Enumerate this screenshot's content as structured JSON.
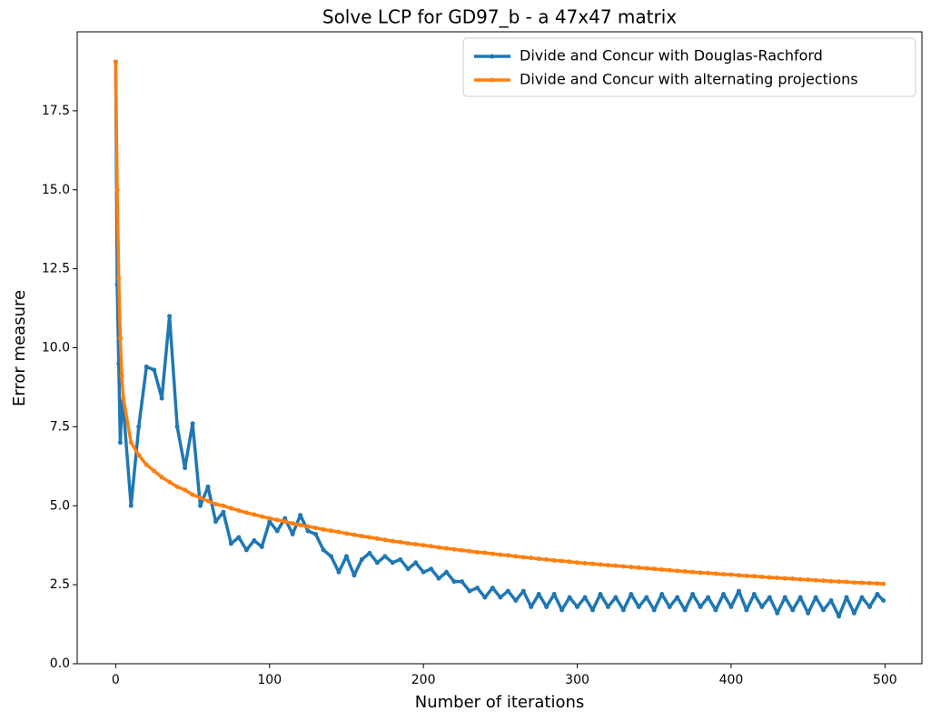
{
  "chart_data": {
    "type": "line",
    "title": "Solve LCP for GD97_b - a 47x47 matrix",
    "xlabel": "Number of iterations",
    "ylabel": "Error measure",
    "x": [
      0,
      1,
      2,
      3,
      4,
      5,
      10,
      15,
      20,
      25,
      30,
      35,
      40,
      45,
      50,
      55,
      60,
      65,
      70,
      75,
      80,
      85,
      90,
      95,
      100,
      105,
      110,
      115,
      120,
      125,
      130,
      135,
      140,
      145,
      150,
      155,
      160,
      165,
      170,
      175,
      180,
      185,
      190,
      195,
      200,
      205,
      210,
      215,
      220,
      225,
      230,
      235,
      240,
      245,
      250,
      255,
      260,
      265,
      270,
      275,
      280,
      285,
      290,
      295,
      300,
      305,
      310,
      315,
      320,
      325,
      330,
      335,
      340,
      345,
      350,
      355,
      360,
      365,
      370,
      375,
      380,
      385,
      390,
      395,
      400,
      405,
      410,
      415,
      420,
      425,
      430,
      435,
      440,
      445,
      450,
      455,
      460,
      465,
      470,
      475,
      480,
      485,
      490,
      495,
      499
    ],
    "series": [
      {
        "name": "Divide and Concur with Douglas-Rachford",
        "color": "#1f77b4",
        "values": [
          19.05,
          12.0,
          9.5,
          7.0,
          8.3,
          8.1,
          5.0,
          7.5,
          9.4,
          9.3,
          8.4,
          11.0,
          7.5,
          6.2,
          7.6,
          5.0,
          5.6,
          4.5,
          4.8,
          3.8,
          4.0,
          3.6,
          3.9,
          3.7,
          4.5,
          4.2,
          4.6,
          4.1,
          4.7,
          4.2,
          4.1,
          3.6,
          3.4,
          2.9,
          3.4,
          2.8,
          3.3,
          3.5,
          3.2,
          3.4,
          3.2,
          3.3,
          3.0,
          3.2,
          2.9,
          3.0,
          2.7,
          2.9,
          2.6,
          2.6,
          2.3,
          2.4,
          2.1,
          2.4,
          2.1,
          2.3,
          2.0,
          2.3,
          1.8,
          2.2,
          1.8,
          2.2,
          1.7,
          2.1,
          1.8,
          2.1,
          1.7,
          2.2,
          1.8,
          2.1,
          1.7,
          2.2,
          1.8,
          2.1,
          1.7,
          2.2,
          1.8,
          2.1,
          1.7,
          2.2,
          1.8,
          2.1,
          1.7,
          2.2,
          1.8,
          2.3,
          1.7,
          2.2,
          1.8,
          2.1,
          1.6,
          2.1,
          1.7,
          2.1,
          1.6,
          2.1,
          1.7,
          2.0,
          1.5,
          2.1,
          1.6,
          2.1,
          1.8,
          2.2,
          2.0
        ]
      },
      {
        "name": "Divide and Concur with alternating projections",
        "color": "#ff7f0e",
        "values": [
          19.05,
          15.0,
          12.2,
          10.3,
          9.1,
          8.4,
          7.0,
          6.6,
          6.3,
          6.1,
          5.9,
          5.75,
          5.6,
          5.5,
          5.35,
          5.25,
          5.15,
          5.05,
          5.0,
          4.92,
          4.85,
          4.78,
          4.72,
          4.66,
          4.6,
          4.55,
          4.5,
          4.44,
          4.39,
          4.34,
          4.3,
          4.25,
          4.21,
          4.17,
          4.12,
          4.08,
          4.04,
          4.0,
          3.96,
          3.92,
          3.88,
          3.85,
          3.81,
          3.78,
          3.75,
          3.72,
          3.68,
          3.65,
          3.62,
          3.59,
          3.56,
          3.53,
          3.51,
          3.48,
          3.45,
          3.43,
          3.4,
          3.37,
          3.35,
          3.32,
          3.3,
          3.27,
          3.25,
          3.23,
          3.2,
          3.18,
          3.16,
          3.14,
          3.12,
          3.1,
          3.08,
          3.06,
          3.04,
          3.02,
          3.0,
          2.98,
          2.96,
          2.94,
          2.92,
          2.9,
          2.88,
          2.87,
          2.85,
          2.83,
          2.82,
          2.8,
          2.78,
          2.77,
          2.75,
          2.73,
          2.72,
          2.7,
          2.69,
          2.67,
          2.66,
          2.64,
          2.63,
          2.61,
          2.6,
          2.59,
          2.57,
          2.56,
          2.55,
          2.54,
          2.53
        ]
      }
    ],
    "xlim": [
      -25,
      524
    ],
    "ylim": [
      0,
      20
    ],
    "xticks": [
      0,
      100,
      200,
      300,
      400,
      500
    ],
    "yticks": [
      {
        "value": 0,
        "label": "0.0"
      },
      2.5,
      {
        "value": 5,
        "label": "5.0"
      },
      7.5,
      {
        "value": 10,
        "label": "10.0"
      },
      12.5,
      {
        "value": 15,
        "label": "15.0"
      },
      17.5
    ],
    "legend": "upper right"
  }
}
